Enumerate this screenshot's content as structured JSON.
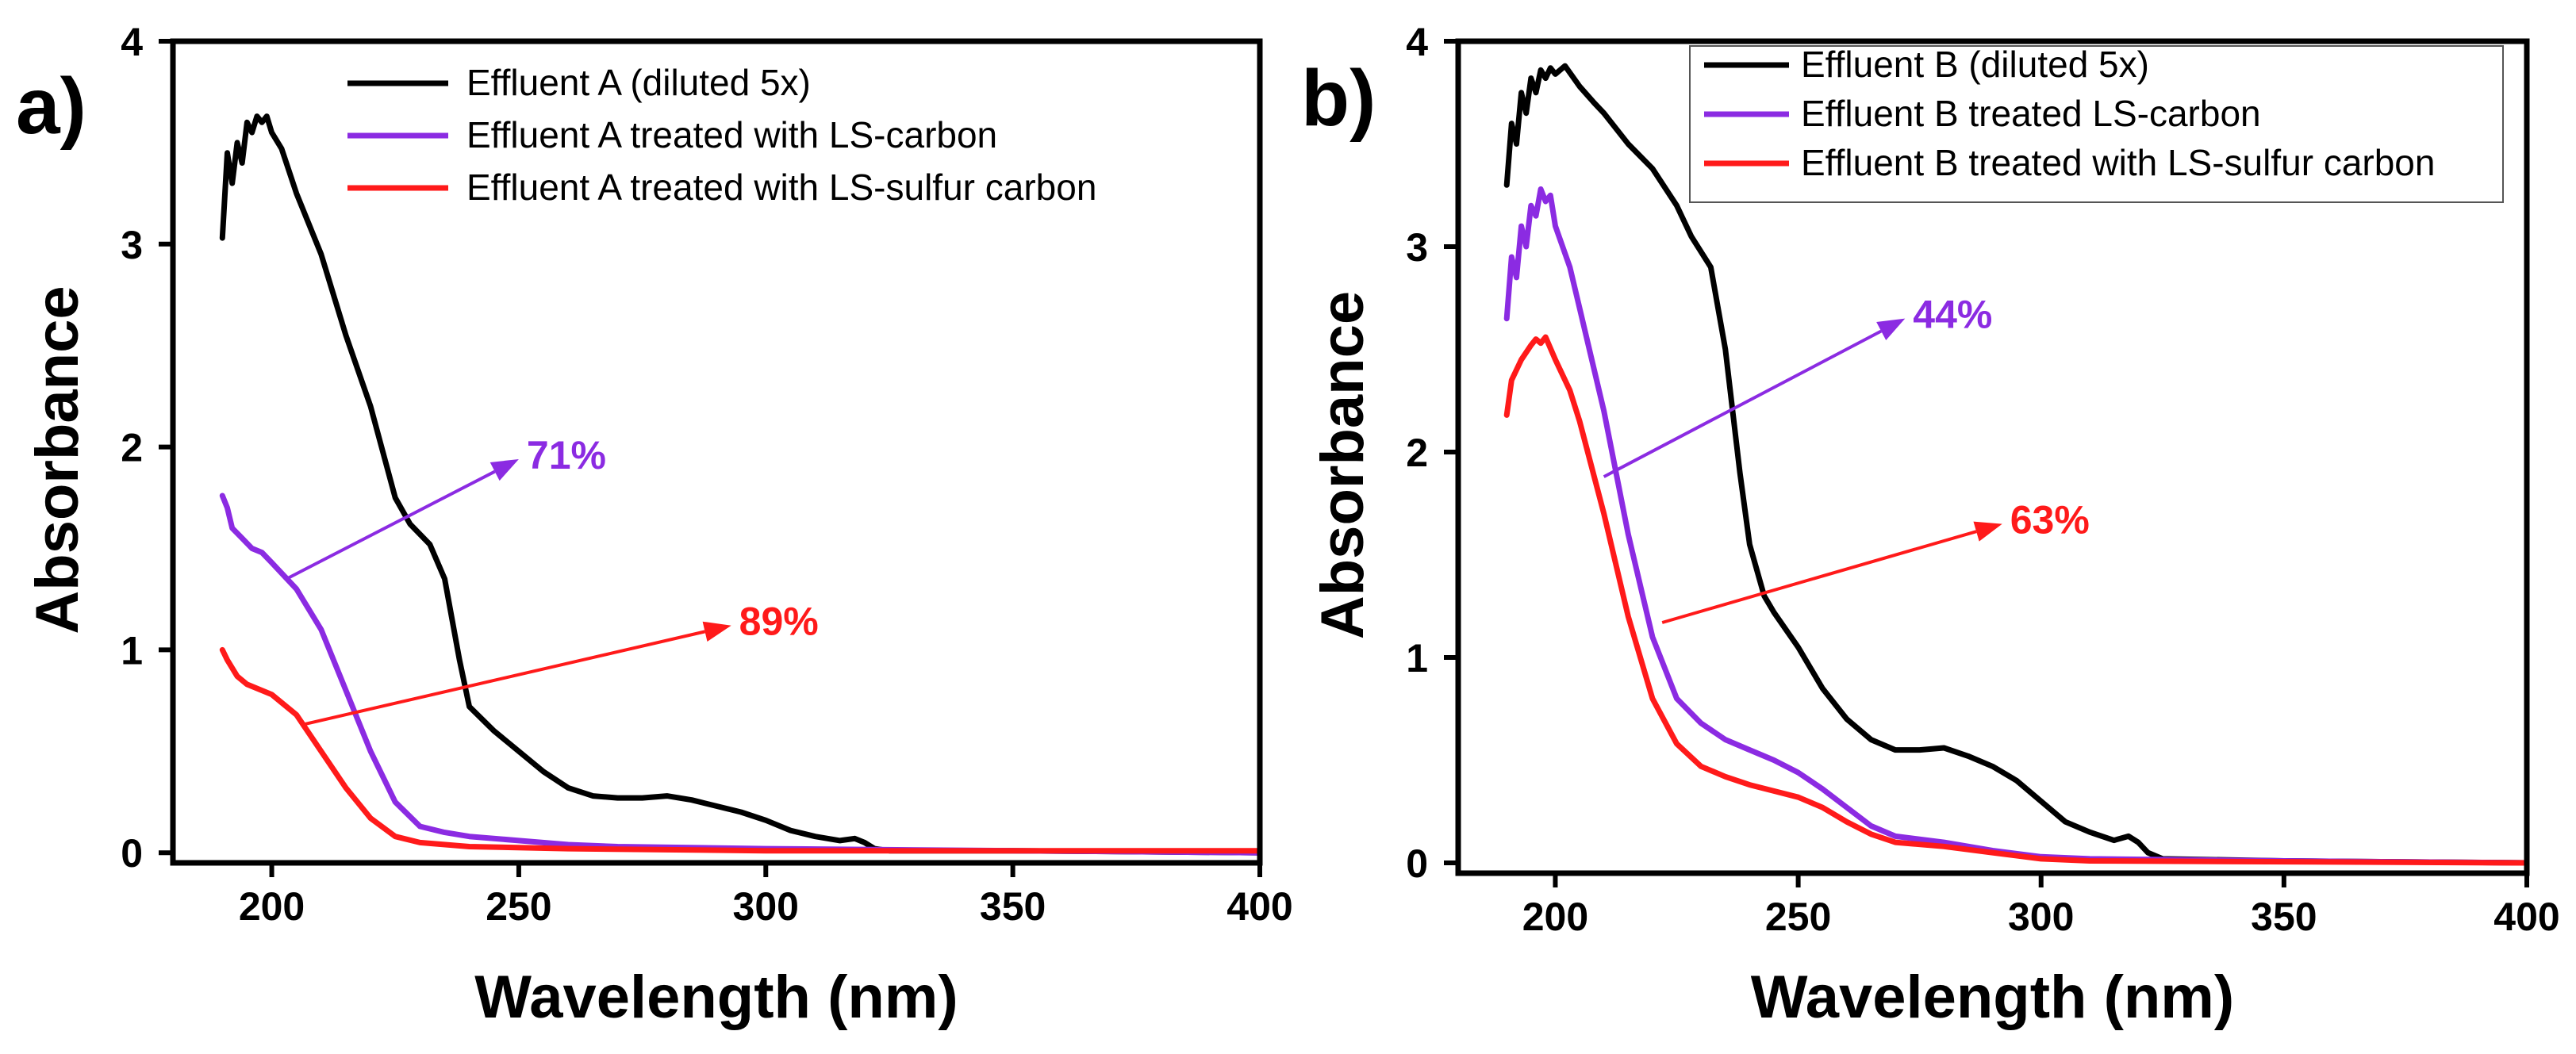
{
  "chart_data": [
    {
      "type": "line",
      "panel_label": "a)",
      "xlabel": "Wavelength (nm)",
      "ylabel": "Absorbance",
      "xlim": [
        180,
        400
      ],
      "ylim": [
        -0.05,
        4
      ],
      "xticks": [
        200,
        250,
        300,
        350,
        400
      ],
      "yticks": [
        0,
        1,
        2,
        3,
        4
      ],
      "legend_box": false,
      "legend_position": "top-right",
      "series": [
        {
          "name": "Effluent A (diluted 5x)",
          "color": "#000000",
          "points": [
            [
              190,
              3.03
            ],
            [
              191,
              3.45
            ],
            [
              192,
              3.3
            ],
            [
              193,
              3.5
            ],
            [
              194,
              3.4
            ],
            [
              195,
              3.6
            ],
            [
              196,
              3.55
            ],
            [
              197,
              3.63
            ],
            [
              198,
              3.6
            ],
            [
              199,
              3.63
            ],
            [
              200,
              3.55
            ],
            [
              202,
              3.47
            ],
            [
              205,
              3.25
            ],
            [
              210,
              2.95
            ],
            [
              215,
              2.55
            ],
            [
              220,
              2.2
            ],
            [
              225,
              1.75
            ],
            [
              228,
              1.62
            ],
            [
              232,
              1.52
            ],
            [
              235,
              1.35
            ],
            [
              238,
              0.95
            ],
            [
              240,
              0.72
            ],
            [
              245,
              0.6
            ],
            [
              250,
              0.5
            ],
            [
              255,
              0.4
            ],
            [
              260,
              0.32
            ],
            [
              265,
              0.28
            ],
            [
              270,
              0.27
            ],
            [
              275,
              0.27
            ],
            [
              280,
              0.28
            ],
            [
              285,
              0.26
            ],
            [
              290,
              0.23
            ],
            [
              295,
              0.2
            ],
            [
              300,
              0.16
            ],
            [
              305,
              0.11
            ],
            [
              310,
              0.08
            ],
            [
              315,
              0.06
            ],
            [
              318,
              0.07
            ],
            [
              320,
              0.05
            ],
            [
              322,
              0.02
            ],
            [
              325,
              0.01
            ],
            [
              350,
              0.01
            ],
            [
              400,
              0.0
            ]
          ]
        },
        {
          "name": "Effluent A treated with LS-carbon",
          "color": "#8b2be2",
          "points": [
            [
              190,
              1.76
            ],
            [
              191,
              1.7
            ],
            [
              192,
              1.6
            ],
            [
              194,
              1.55
            ],
            [
              196,
              1.5
            ],
            [
              198,
              1.48
            ],
            [
              200,
              1.43
            ],
            [
              205,
              1.3
            ],
            [
              210,
              1.1
            ],
            [
              215,
              0.8
            ],
            [
              220,
              0.5
            ],
            [
              225,
              0.25
            ],
            [
              230,
              0.13
            ],
            [
              235,
              0.1
            ],
            [
              240,
              0.08
            ],
            [
              250,
              0.06
            ],
            [
              260,
              0.04
            ],
            [
              270,
              0.03
            ],
            [
              300,
              0.02
            ],
            [
              350,
              0.01
            ],
            [
              400,
              0.0
            ]
          ]
        },
        {
          "name": "Effluent A treated with LS-sulfur carbon",
          "color": "#ff1a1a",
          "points": [
            [
              190,
              1.0
            ],
            [
              191,
              0.95
            ],
            [
              193,
              0.87
            ],
            [
              195,
              0.83
            ],
            [
              200,
              0.78
            ],
            [
              205,
              0.68
            ],
            [
              210,
              0.5
            ],
            [
              215,
              0.32
            ],
            [
              220,
              0.17
            ],
            [
              225,
              0.08
            ],
            [
              230,
              0.05
            ],
            [
              240,
              0.03
            ],
            [
              260,
              0.02
            ],
            [
              300,
              0.01
            ],
            [
              400,
              0.01
            ]
          ]
        }
      ],
      "annotations": [
        {
          "text": "71%",
          "color": "#8b2be2",
          "arrow_from": [
            203,
            1.35
          ],
          "arrow_to": [
            250,
            1.94
          ]
        },
        {
          "text": "89%",
          "color": "#ff1a1a",
          "arrow_from": [
            206,
            0.63
          ],
          "arrow_to": [
            293,
            1.12
          ]
        }
      ]
    },
    {
      "type": "line",
      "panel_label": "b)",
      "xlabel": "Wavelength (nm)",
      "ylabel": "Absorbance",
      "xlim": [
        180,
        400
      ],
      "ylim": [
        -0.05,
        4
      ],
      "xticks": [
        200,
        250,
        300,
        350,
        400
      ],
      "yticks": [
        0,
        1,
        2,
        3,
        4
      ],
      "legend_box": true,
      "legend_position": "top-right",
      "series": [
        {
          "name": "Effluent B (diluted 5x)",
          "color": "#000000",
          "points": [
            [
              190,
              3.3
            ],
            [
              191,
              3.6
            ],
            [
              192,
              3.5
            ],
            [
              193,
              3.75
            ],
            [
              194,
              3.65
            ],
            [
              195,
              3.82
            ],
            [
              196,
              3.75
            ],
            [
              197,
              3.86
            ],
            [
              198,
              3.82
            ],
            [
              199,
              3.87
            ],
            [
              200,
              3.84
            ],
            [
              202,
              3.88
            ],
            [
              205,
              3.78
            ],
            [
              208,
              3.7
            ],
            [
              210,
              3.65
            ],
            [
              215,
              3.5
            ],
            [
              220,
              3.38
            ],
            [
              225,
              3.2
            ],
            [
              228,
              3.05
            ],
            [
              232,
              2.9
            ],
            [
              235,
              2.5
            ],
            [
              238,
              1.9
            ],
            [
              240,
              1.55
            ],
            [
              243,
              1.3
            ],
            [
              245,
              1.22
            ],
            [
              250,
              1.05
            ],
            [
              255,
              0.85
            ],
            [
              260,
              0.7
            ],
            [
              265,
              0.6
            ],
            [
              270,
              0.55
            ],
            [
              275,
              0.55
            ],
            [
              280,
              0.56
            ],
            [
              285,
              0.52
            ],
            [
              290,
              0.47
            ],
            [
              295,
              0.4
            ],
            [
              300,
              0.3
            ],
            [
              305,
              0.2
            ],
            [
              310,
              0.15
            ],
            [
              315,
              0.11
            ],
            [
              318,
              0.13
            ],
            [
              320,
              0.1
            ],
            [
              322,
              0.05
            ],
            [
              325,
              0.02
            ],
            [
              350,
              0.01
            ],
            [
              400,
              0.0
            ]
          ]
        },
        {
          "name": "Effluent B treated LS-carbon",
          "color": "#8b2be2",
          "points": [
            [
              190,
              2.65
            ],
            [
              191,
              2.95
            ],
            [
              192,
              2.85
            ],
            [
              193,
              3.1
            ],
            [
              194,
              3.0
            ],
            [
              195,
              3.2
            ],
            [
              196,
              3.15
            ],
            [
              197,
              3.28
            ],
            [
              198,
              3.22
            ],
            [
              199,
              3.25
            ],
            [
              200,
              3.1
            ],
            [
              203,
              2.9
            ],
            [
              205,
              2.7
            ],
            [
              210,
              2.2
            ],
            [
              215,
              1.6
            ],
            [
              220,
              1.1
            ],
            [
              225,
              0.8
            ],
            [
              230,
              0.68
            ],
            [
              235,
              0.6
            ],
            [
              240,
              0.55
            ],
            [
              245,
              0.5
            ],
            [
              250,
              0.44
            ],
            [
              255,
              0.36
            ],
            [
              260,
              0.27
            ],
            [
              265,
              0.18
            ],
            [
              270,
              0.13
            ],
            [
              280,
              0.1
            ],
            [
              290,
              0.06
            ],
            [
              300,
              0.03
            ],
            [
              310,
              0.02
            ],
            [
              350,
              0.01
            ],
            [
              400,
              0.0
            ]
          ]
        },
        {
          "name": "Effluent B treated with LS-sulfur carbon",
          "color": "#ff1a1a",
          "points": [
            [
              190,
              2.18
            ],
            [
              191,
              2.35
            ],
            [
              193,
              2.45
            ],
            [
              195,
              2.52
            ],
            [
              196,
              2.55
            ],
            [
              197,
              2.53
            ],
            [
              198,
              2.56
            ],
            [
              200,
              2.45
            ],
            [
              203,
              2.3
            ],
            [
              205,
              2.15
            ],
            [
              210,
              1.7
            ],
            [
              215,
              1.2
            ],
            [
              220,
              0.8
            ],
            [
              225,
              0.58
            ],
            [
              230,
              0.47
            ],
            [
              235,
              0.42
            ],
            [
              240,
              0.38
            ],
            [
              245,
              0.35
            ],
            [
              250,
              0.32
            ],
            [
              255,
              0.27
            ],
            [
              260,
              0.2
            ],
            [
              265,
              0.14
            ],
            [
              270,
              0.1
            ],
            [
              280,
              0.08
            ],
            [
              290,
              0.05
            ],
            [
              300,
              0.02
            ],
            [
              310,
              0.01
            ],
            [
              400,
              0.0
            ]
          ]
        }
      ],
      "annotations": [
        {
          "text": "44%",
          "color": "#8b2be2",
          "arrow_from": [
            210,
            1.88
          ],
          "arrow_to": [
            272,
            2.65
          ]
        },
        {
          "text": "63%",
          "color": "#ff1a1a",
          "arrow_from": [
            222,
            1.17
          ],
          "arrow_to": [
            292,
            1.65
          ]
        }
      ]
    }
  ]
}
